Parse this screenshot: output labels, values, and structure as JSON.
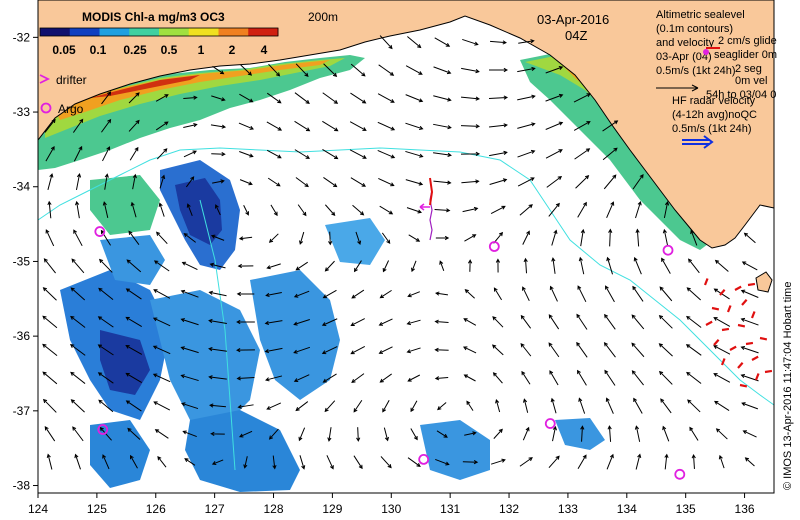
{
  "map": {
    "lon_range": [
      124,
      136.5
    ],
    "lat_range": [
      -38.1,
      -31.5
    ],
    "x_ticks": [
      "124",
      "125",
      "126",
      "127",
      "128",
      "129",
      "130",
      "131",
      "132",
      "133",
      "134",
      "135",
      "136"
    ],
    "y_ticks": [
      "-32",
      "-33",
      "-34",
      "-35",
      "-36",
      "-37",
      "-38"
    ],
    "land_color": "#f9c89a",
    "coast_color": "#000000",
    "contour_color": "#40e0e0",
    "argo_color": "#e020e0",
    "radar_color": "#e01010"
  },
  "colorbar": {
    "title": "MODIS Chl-a mg/m3 OC3",
    "labels": [
      "0.05",
      "0.1",
      "0.25",
      "0.5",
      "1",
      "2",
      "4"
    ],
    "colors": [
      "#10106e",
      "#1040c0",
      "#20a0e0",
      "#40d0a0",
      "#a0e040",
      "#f0e020",
      "#f08020",
      "#d02010"
    ]
  },
  "header": {
    "isobath": "200m",
    "date": "03-Apr-2016",
    "time": "04Z"
  },
  "legend_left": {
    "drifter": "drifter",
    "argo": "Argo"
  },
  "legend_right": {
    "altimetric_1": "Altimetric sealevel",
    "altimetric_2": "(0.1m contours)",
    "altimetric_3": "and velocity",
    "overlap_1": "2 cm/s glide",
    "overlap_2": "seaglider 0m",
    "overlap_3": "2 seg",
    "date_line": "03-Apr (04)",
    "overlap_4": "0m vel",
    "scale_line": "0.5m/s (1kt 24h)",
    "overlap_5": "54h to 03/04 0",
    "hf_1": "HF radar velocity",
    "hf_2": "(4-12h avg)noQC",
    "hf_3": "0.5m/s (1kt 24h)"
  },
  "credit": "© IMOS 13-Apr-2016 11:47:04 Hobart time",
  "argo_floats": [
    {
      "lon": 125.05,
      "lat": -34.6
    },
    {
      "lon": 131.75,
      "lat": -34.8
    },
    {
      "lon": 134.7,
      "lat": -34.85
    },
    {
      "lon": 125.1,
      "lat": -37.25
    },
    {
      "lon": 132.7,
      "lat": -37.17
    },
    {
      "lon": 130.55,
      "lat": -37.65
    },
    {
      "lon": 134.9,
      "lat": -37.85
    }
  ]
}
